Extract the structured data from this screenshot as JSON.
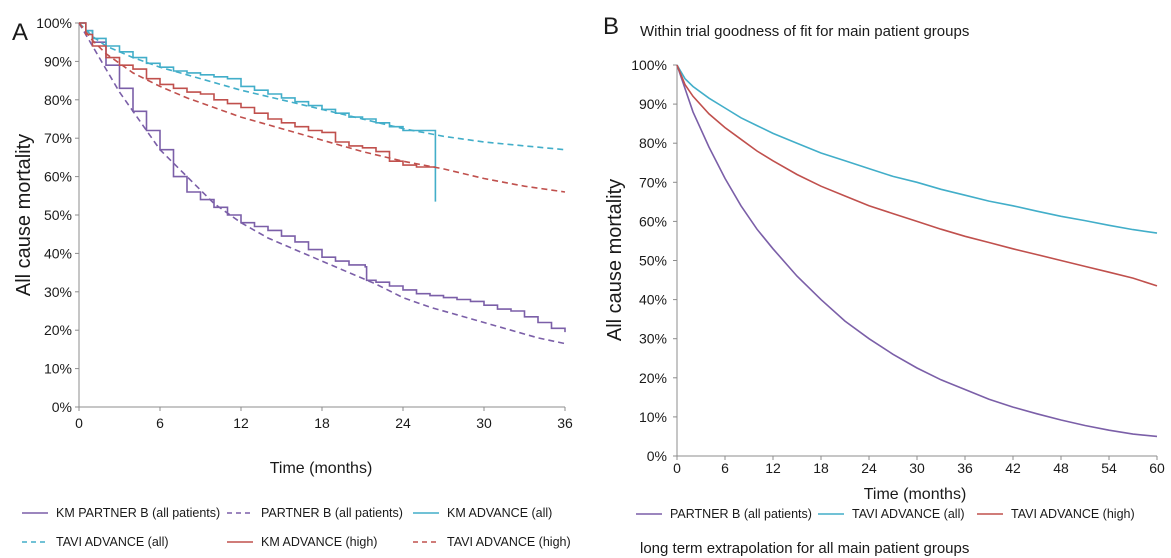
{
  "panels": [
    {
      "letter": "A",
      "subtitle": "",
      "footer": ""
    },
    {
      "letter": "B",
      "subtitle": "Within trial goodness of fit for main patient groups",
      "footer": "long term extrapolation for all main patient groups"
    }
  ],
  "colors": {
    "purple": "#7b5fa8",
    "teal": "#42aec9",
    "red": "#c0504d",
    "axis": "#8c8c8c"
  },
  "chart_data": [
    {
      "type": "line",
      "title": "",
      "xlabel": "Time (months)",
      "ylabel": "All cause mortality",
      "xlim": [
        0,
        36
      ],
      "ylim": [
        0,
        100
      ],
      "x_ticks": [
        "0",
        "6",
        "12",
        "18",
        "24",
        "30",
        "36"
      ],
      "y_ticks": [
        "0%",
        "10%",
        "20%",
        "30%",
        "40%",
        "50%",
        "60%",
        "70%",
        "80%",
        "90%",
        "100%"
      ],
      "grid": false,
      "legend_position": "bottom",
      "series": [
        {
          "name": "KM PARTNER B (all patients)",
          "color": "#7b5fa8",
          "dash": "solid",
          "step": true,
          "x": [
            0,
            0.5,
            1,
            2,
            3,
            4,
            5,
            6,
            7,
            8,
            9,
            10,
            11,
            12,
            13,
            14,
            15,
            16,
            17,
            18,
            19,
            20,
            21.2,
            21.3,
            22,
            23,
            24,
            25,
            26,
            27,
            28,
            29,
            30,
            31,
            32,
            33,
            34,
            35,
            36
          ],
          "y": [
            100,
            98,
            95,
            89,
            83,
            77,
            72,
            67,
            60,
            56,
            54,
            52,
            50,
            48,
            47,
            46,
            44.5,
            43,
            41,
            39,
            38,
            37,
            36.5,
            33,
            32.5,
            31.5,
            30.5,
            29.5,
            29,
            28.5,
            28,
            27.5,
            26.5,
            25.5,
            25,
            23.5,
            22,
            20.5,
            19.5
          ]
        },
        {
          "name": "PARTNER B (all patients)",
          "color": "#7b5fa8",
          "dash": "dashed",
          "step": false,
          "x": [
            0,
            1,
            2,
            3,
            4,
            5,
            6,
            8,
            10,
            12,
            14,
            16,
            18,
            20,
            22,
            24,
            26,
            28,
            30,
            32,
            34,
            36
          ],
          "y": [
            100,
            94,
            88,
            82,
            77,
            72,
            67,
            60,
            53,
            48,
            44,
            41,
            38,
            35,
            32,
            28.5,
            26,
            24,
            22,
            20,
            18,
            16.5
          ]
        },
        {
          "name": "KM ADVANCE (all)",
          "color": "#42aec9",
          "dash": "solid",
          "step": true,
          "x": [
            0,
            0.5,
            1,
            2,
            3,
            4,
            5,
            6,
            7,
            8,
            9,
            10,
            11,
            12,
            13,
            14,
            15,
            16,
            17,
            18,
            19,
            20,
            21,
            22,
            23,
            24,
            25,
            26.3,
            26.4
          ],
          "y": [
            100,
            98,
            96,
            94,
            92.5,
            91,
            89.5,
            88.5,
            87.5,
            87,
            86.5,
            86,
            85.5,
            83.5,
            82.5,
            81.5,
            80.5,
            79.5,
            78.5,
            77.5,
            76.5,
            75.5,
            75,
            74,
            73,
            72,
            72,
            72,
            53.5
          ]
        },
        {
          "name": "TAVI ADVANCE (all)",
          "color": "#42aec9",
          "dash": "dashed",
          "step": false,
          "x": [
            0,
            1,
            2,
            4,
            6,
            8,
            10,
            12,
            15,
            18,
            21,
            24,
            27,
            30,
            33,
            36
          ],
          "y": [
            100,
            96.5,
            94,
            91,
            88.5,
            86.5,
            84.5,
            82.5,
            80,
            77.5,
            75,
            72.5,
            70.5,
            69,
            68,
            67
          ]
        },
        {
          "name": "KM ADVANCE (high)",
          "color": "#c0504d",
          "dash": "solid",
          "step": true,
          "x": [
            0,
            0.5,
            1,
            2,
            3,
            4,
            5,
            6,
            7,
            8,
            9,
            10,
            11,
            12,
            13,
            14,
            15,
            16,
            17,
            18,
            19,
            20,
            21,
            22,
            23,
            24,
            25,
            26.4
          ],
          "y": [
            100,
            97,
            94,
            91,
            89,
            88,
            85.5,
            84,
            83,
            82,
            81.5,
            80,
            79,
            78,
            76.5,
            75,
            74,
            73,
            72,
            71.5,
            69,
            68,
            67.5,
            66.5,
            64,
            63,
            62.5,
            62.5
          ]
        },
        {
          "name": "TAVI ADVANCE (high)",
          "color": "#c0504d",
          "dash": "dashed",
          "step": false,
          "x": [
            0,
            1,
            2,
            4,
            6,
            8,
            10,
            12,
            15,
            18,
            21,
            24,
            27,
            30,
            33,
            36
          ],
          "y": [
            100,
            95.5,
            92,
            87,
            83.5,
            80.5,
            78,
            75.5,
            72.5,
            69.5,
            66.5,
            64,
            62,
            59.5,
            57.5,
            56
          ]
        }
      ]
    },
    {
      "type": "line",
      "title": "Within trial goodness of fit for main patient groups",
      "xlabel": "Time (months)",
      "ylabel": "All cause mortality",
      "xlim": [
        0,
        60
      ],
      "ylim": [
        0,
        100
      ],
      "x_ticks": [
        "0",
        "6",
        "12",
        "18",
        "24",
        "30",
        "36",
        "42",
        "48",
        "54",
        "60"
      ],
      "y_ticks": [
        "0%",
        "10%",
        "20%",
        "30%",
        "40%",
        "50%",
        "60%",
        "70%",
        "80%",
        "90%",
        "100%"
      ],
      "grid": false,
      "legend_position": "bottom",
      "series": [
        {
          "name": "PARTNER B (all patients)",
          "color": "#7b5fa8",
          "dash": "solid",
          "step": false,
          "x": [
            0,
            1,
            2,
            4,
            6,
            8,
            10,
            12,
            15,
            18,
            21,
            24,
            27,
            30,
            33,
            36,
            39,
            42,
            45,
            48,
            51,
            54,
            57,
            60
          ],
          "y": [
            100,
            94,
            88,
            79,
            71,
            64,
            58,
            53,
            46,
            40,
            34.5,
            30,
            26,
            22.5,
            19.5,
            17,
            14.5,
            12.5,
            10.8,
            9.2,
            7.8,
            6.6,
            5.6,
            5
          ]
        },
        {
          "name": "TAVI ADVANCE (all)",
          "color": "#42aec9",
          "dash": "solid",
          "step": false,
          "x": [
            0,
            1,
            2,
            4,
            6,
            8,
            10,
            12,
            15,
            18,
            21,
            24,
            27,
            30,
            33,
            36,
            39,
            42,
            45,
            48,
            51,
            54,
            57,
            60
          ],
          "y": [
            100,
            96.5,
            94.5,
            91.5,
            89,
            86.5,
            84.5,
            82.5,
            80,
            77.5,
            75.5,
            73.5,
            71.5,
            70,
            68.2,
            66.7,
            65.2,
            64,
            62.6,
            61.3,
            60.2,
            59,
            57.9,
            57
          ]
        },
        {
          "name": "TAVI ADVANCE (high)",
          "color": "#c0504d",
          "dash": "solid",
          "step": false,
          "x": [
            0,
            1,
            2,
            4,
            6,
            8,
            10,
            12,
            15,
            18,
            21,
            24,
            27,
            30,
            33,
            36,
            39,
            42,
            45,
            48,
            51,
            54,
            57,
            60
          ],
          "y": [
            100,
            95,
            92,
            87.5,
            84,
            81,
            78,
            75.5,
            72,
            69,
            66.5,
            64,
            62,
            60,
            58,
            56.2,
            54.6,
            53,
            51.5,
            50,
            48.5,
            47,
            45.5,
            43.5
          ]
        }
      ]
    }
  ]
}
